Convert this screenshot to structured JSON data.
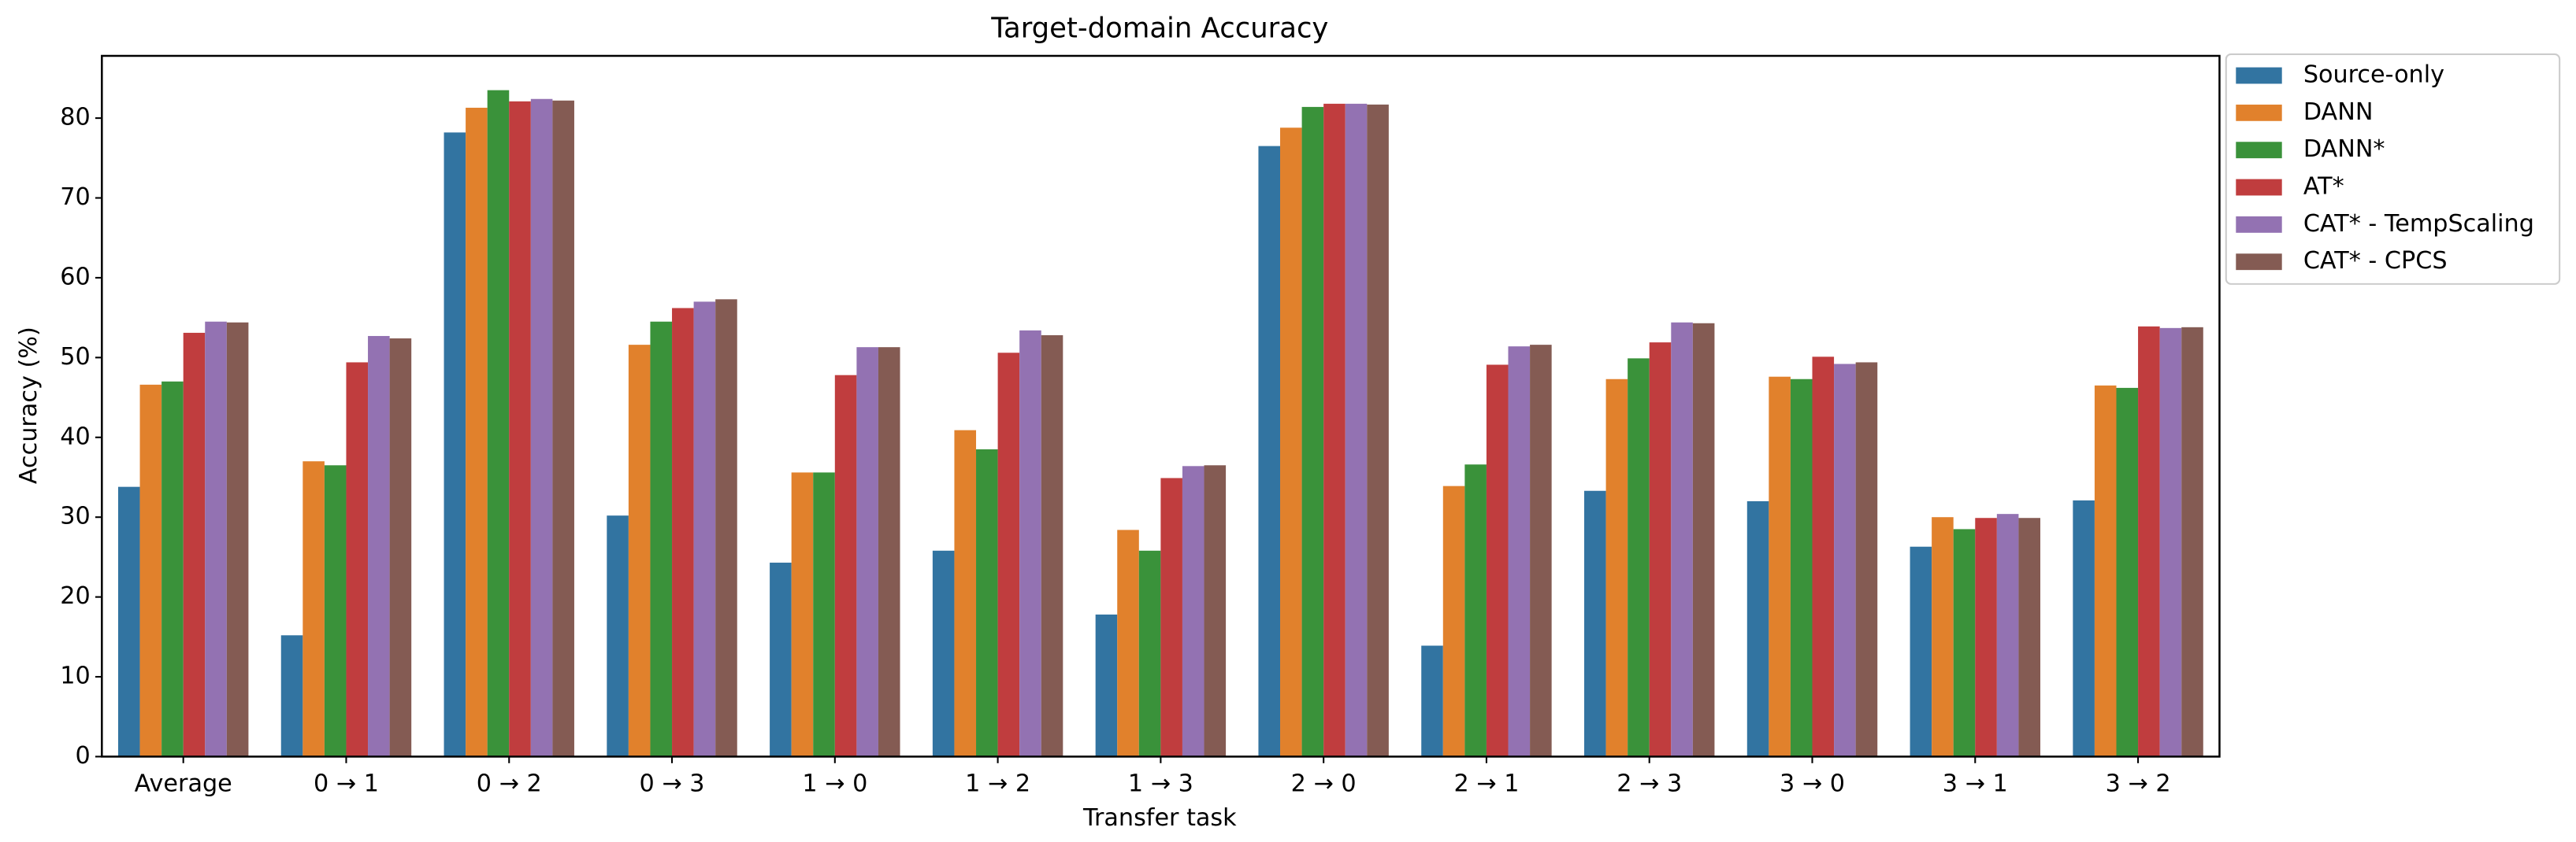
{
  "chart_data": {
    "type": "bar",
    "title": "Target-domain Accuracy",
    "x_label": "Transfer task",
    "y_label": "Accuracy (%)",
    "categories": [
      "Average",
      "0 → 1",
      "0 → 2",
      "0 → 3",
      "1 → 0",
      "1 → 2",
      "1 → 3",
      "2 → 0",
      "2 → 1",
      "2 → 3",
      "3 → 0",
      "3 → 1",
      "3 → 2"
    ],
    "series": [
      {
        "name": "Source-only",
        "color": "#3274a1",
        "values": [
          33.8,
          15.2,
          78.2,
          30.2,
          24.3,
          25.8,
          17.8,
          76.5,
          13.9,
          33.3,
          32.0,
          26.3,
          32.1
        ]
      },
      {
        "name": "DANN",
        "color": "#e1812c",
        "values": [
          46.6,
          37.0,
          81.3,
          51.6,
          35.6,
          40.9,
          28.4,
          78.8,
          33.9,
          47.3,
          47.6,
          30.0,
          46.5
        ]
      },
      {
        "name": "DANN*",
        "color": "#3a923a",
        "values": [
          47.0,
          36.5,
          83.5,
          54.5,
          35.6,
          38.5,
          25.8,
          81.4,
          36.6,
          49.9,
          47.3,
          28.5,
          46.2
        ]
      },
      {
        "name": "AT*",
        "color": "#c03d3e",
        "values": [
          53.1,
          49.4,
          82.1,
          56.2,
          47.8,
          50.6,
          34.9,
          81.8,
          49.1,
          51.9,
          50.1,
          29.9,
          53.9
        ]
      },
      {
        "name": "CAT* - TempScaling",
        "color": "#9372b2",
        "values": [
          54.5,
          52.7,
          82.4,
          57.0,
          51.3,
          53.4,
          36.4,
          81.8,
          51.4,
          54.4,
          49.2,
          30.4,
          53.7
        ]
      },
      {
        "name": "CAT* - CPCS",
        "color": "#845b53",
        "values": [
          54.4,
          52.4,
          82.2,
          57.3,
          51.3,
          52.8,
          36.5,
          81.7,
          51.6,
          54.3,
          49.4,
          29.9,
          53.8
        ]
      }
    ],
    "ylim": [
      0,
      87.8
    ],
    "yticks": [
      0,
      10,
      20,
      30,
      40,
      50,
      60,
      70,
      80
    ],
    "grid": false,
    "legend": "outside upper right"
  }
}
